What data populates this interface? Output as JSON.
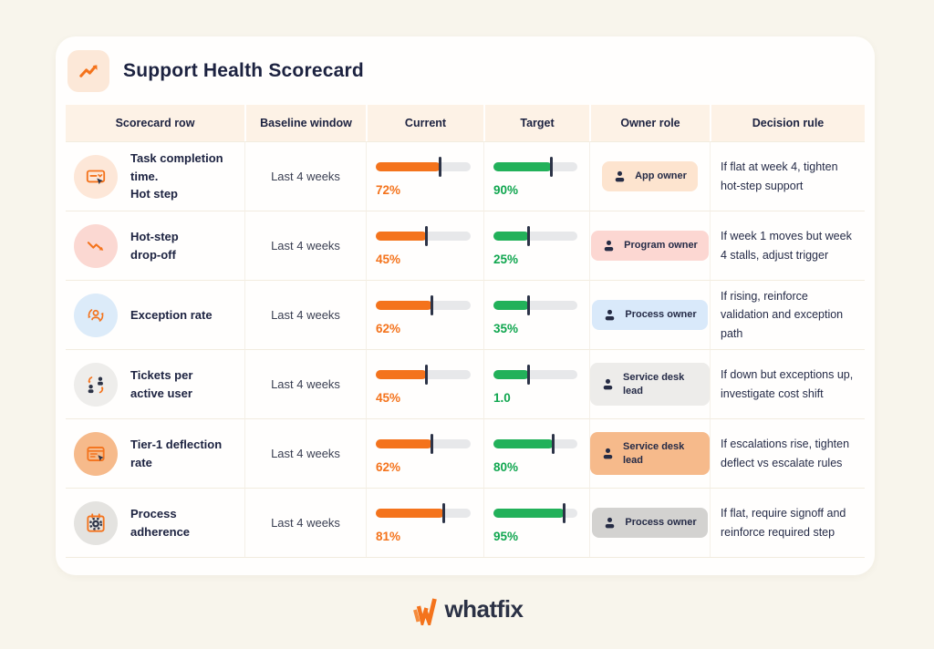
{
  "colors": {
    "page_bg": "#f8f5ec",
    "card_bg": "#fffefd",
    "header_row_bg": "#fdf2e6",
    "orange": "#f4731c",
    "green": "#22b15a",
    "green_text": "#10a64f",
    "navy": "#1c2240",
    "marker": "#2c3347",
    "track": "#e7e8ea"
  },
  "header": {
    "title": "Support Health Scorecard",
    "icon": "trend-up-icon",
    "icon_bg": "#fce8d8"
  },
  "table": {
    "headers": [
      "Scorecard row",
      "Baseline window",
      "Current",
      "Target",
      "Owner role",
      "Decision rule"
    ],
    "rows": [
      {
        "icon": "form-cursor-icon",
        "icon_bg": "#fde7d8",
        "metric_l1": "Task completion time.",
        "metric_l2": "Hot step",
        "baseline": "Last 4 weeks",
        "current": {
          "label": "72%",
          "fill_pct": 68
        },
        "target": {
          "label": "90%",
          "fill_pct": 70
        },
        "owner": {
          "label": "App owner",
          "bg": "#fde4cf"
        },
        "rule": "If flat at week 4, tighten hot-step support"
      },
      {
        "icon": "trend-down-icon",
        "icon_bg": "#fbd8d2",
        "metric_l1": "Hot-step",
        "metric_l2": "drop-off",
        "baseline": "Last 4 weeks",
        "current": {
          "label": "45%",
          "fill_pct": 54
        },
        "target": {
          "label": "25%",
          "fill_pct": 42
        },
        "owner": {
          "label": "Program owner",
          "bg": "#fcd7d2"
        },
        "rule": "If week 1 moves but week 4 stalls, adjust trigger"
      },
      {
        "icon": "person-sync-icon",
        "icon_bg": "#dcebf9",
        "metric_l1": "Exception rate",
        "metric_l2": "",
        "baseline": "Last 4 weeks",
        "current": {
          "label": "62%",
          "fill_pct": 60
        },
        "target": {
          "label": "35%",
          "fill_pct": 42
        },
        "owner": {
          "label": "Process owner",
          "bg": "#d9e9fa"
        },
        "rule": "If rising, reinforce validation and exception path"
      },
      {
        "icon": "people-swap-icon",
        "icon_bg": "#eeedeb",
        "metric_l1": "Tickets per",
        "metric_l2": "active user",
        "baseline": "Last 4 weeks",
        "current": {
          "label": "45%",
          "fill_pct": 54
        },
        "target": {
          "label": "1.0",
          "fill_pct": 42
        },
        "owner": {
          "label": "Service desk lead",
          "bg": "#edecea"
        },
        "rule": "If down but exceptions up, investigate cost shift"
      },
      {
        "icon": "browser-card-icon",
        "icon_bg": "#f6ba8b",
        "metric_l1": "Tier-1 deflection",
        "metric_l2": "rate",
        "baseline": "Last 4 weeks",
        "current": {
          "label": "62%",
          "fill_pct": 60
        },
        "target": {
          "label": "80%",
          "fill_pct": 72
        },
        "owner": {
          "label": "Service desk lead",
          "bg": "#f6ba8b"
        },
        "rule": "If escalations rise, tighten deflect vs escalate rules"
      },
      {
        "icon": "calendar-gear-icon",
        "icon_bg": "#e4e3e0",
        "metric_l1": "Process",
        "metric_l2": "adherence",
        "baseline": "Last 4 weeks",
        "current": {
          "label": "81%",
          "fill_pct": 72
        },
        "target": {
          "label": "95%",
          "fill_pct": 85
        },
        "owner": {
          "label": "Process owner",
          "bg": "#d3d2d0"
        },
        "rule": "If flat, require signoff and reinforce required step"
      }
    ]
  },
  "footer": {
    "logo_text": "whatfix",
    "logo_mark": "whatfix-w-icon"
  },
  "chart_data": {
    "type": "table",
    "title": "Support Health Scorecard",
    "columns": [
      "Scorecard row",
      "Baseline window",
      "Current",
      "Target",
      "Owner role",
      "Decision rule"
    ],
    "rows": [
      [
        "Task completion time. Hot step",
        "Last 4 weeks",
        "72%",
        "90%",
        "App owner",
        "If flat at week 4, tighten hot-step support"
      ],
      [
        "Hot-step drop-off",
        "Last 4 weeks",
        "45%",
        "25%",
        "Program owner",
        "If week 1 moves but week 4 stalls, adjust trigger"
      ],
      [
        "Exception rate",
        "Last 4 weeks",
        "62%",
        "35%",
        "Process owner",
        "If rising, reinforce validation and exception path"
      ],
      [
        "Tickets per active user",
        "Last 4 weeks",
        "45%",
        "1.0",
        "Service desk lead",
        "If down but exceptions up, investigate cost shift"
      ],
      [
        "Tier-1 deflection rate",
        "Last 4 weeks",
        "62%",
        "80%",
        "Service desk lead",
        "If escalations rise, tighten deflect vs escalate rules"
      ],
      [
        "Process adherence",
        "Last 4 weeks",
        "81%",
        "95%",
        "Process owner",
        "If flat, require signoff and reinforce required step"
      ]
    ]
  }
}
